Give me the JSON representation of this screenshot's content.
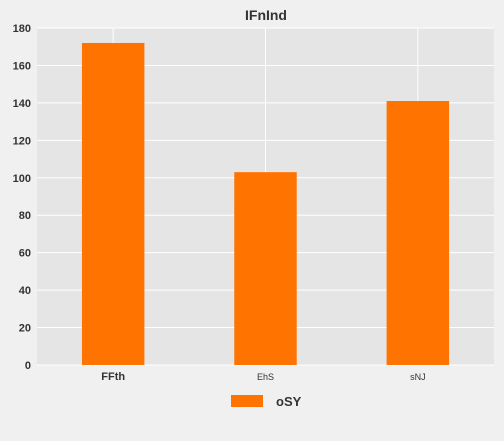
{
  "chart_data": {
    "type": "bar",
    "title": "IFnInd",
    "xlabel": "",
    "ylabel": "",
    "categories": [
      "FFth",
      "EhS",
      "sNJ"
    ],
    "series": [
      {
        "name": "oSY",
        "values": [
          172,
          103,
          141
        ]
      }
    ],
    "ylim": [
      0,
      180
    ],
    "yticks": [
      0,
      20,
      40,
      60,
      80,
      100,
      120,
      140,
      160,
      180
    ],
    "ytick_labels": [
      "0",
      "20",
      "40",
      "60",
      "80",
      "100",
      "120",
      "140",
      "160",
      "180"
    ],
    "grid": true,
    "legend_position": "bottom-center"
  },
  "colors": {
    "background": "#f0f0f0",
    "plot_background": "#e5e5e5",
    "grid": "#ffffff",
    "bar": "#ff7300",
    "text": "#333333"
  }
}
